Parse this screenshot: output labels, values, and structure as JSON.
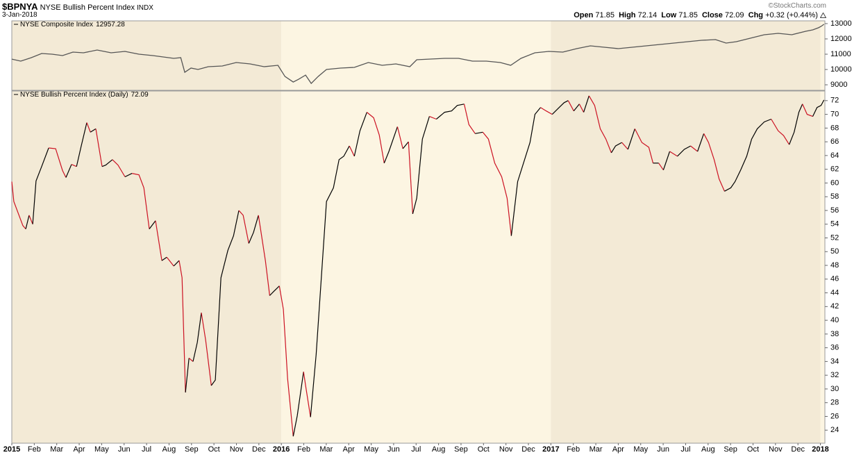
{
  "header": {
    "symbol": "$BPNYA",
    "name": "NYSE Bullish Percent Index",
    "exchange": "INDX",
    "date": "3-Jan-2018",
    "credit": "©StockCharts.com",
    "quote": {
      "open_label": "Open",
      "open": 71.85,
      "high_label": "High",
      "high": 72.14,
      "low_label": "Low",
      "low": 71.85,
      "close_label": "Close",
      "close": 72.09,
      "chg_label": "Chg",
      "chg": "+0.32 (+0.44%)"
    }
  },
  "chart_data": [
    {
      "type": "line",
      "x": [
        0,
        0.4,
        0.87,
        1.33,
        1.79,
        2.26,
        2.72,
        3.19,
        3.8,
        4.42,
        5.04,
        5.66,
        6.28,
        7.21,
        7.52,
        7.7,
        7.98,
        8.29,
        8.75,
        9.37,
        9.99,
        10.61,
        11.23,
        11.85,
        12.16,
        12.53,
        12.77,
        13.08,
        13.33,
        13.64,
        14.01,
        14.63,
        15.25,
        15.87,
        16.49,
        17.1,
        17.72,
        18.03,
        18.65,
        19.27,
        19.89,
        20.51,
        21.13,
        21.75,
        22.21,
        22.67,
        23.29,
        23.91,
        24.53,
        25.15,
        25.76,
        26.38,
        27.0,
        27.62,
        28.24,
        28.86,
        29.48,
        30.1,
        30.71,
        31.33,
        31.8,
        32.26,
        32.88,
        33.5,
        34.12,
        34.73,
        35.35,
        35.66,
        35.91,
        36.03,
        36.16
      ],
      "series": [
        {
          "name": "NYSE Composite Index",
          "color": "#555555",
          "values": [
            10680,
            10545,
            10773,
            11045,
            11000,
            10910,
            11136,
            11090,
            11273,
            11090,
            11182,
            11000,
            10910,
            10727,
            10773,
            9818,
            10091,
            10000,
            10182,
            10227,
            10455,
            10364,
            10182,
            10273,
            9545,
            9182,
            9364,
            9636,
            9091,
            9545,
            10000,
            10091,
            10136,
            10455,
            10273,
            10364,
            10182,
            10636,
            10682,
            10727,
            10727,
            10545,
            10545,
            10455,
            10273,
            10727,
            11091,
            11182,
            11136,
            11364,
            11545,
            11455,
            11364,
            11455,
            11545,
            11636,
            11727,
            11818,
            11909,
            11955,
            11727,
            11818,
            12045,
            12273,
            12364,
            12273,
            12500,
            12591,
            12727,
            12818,
            12957.28
          ]
        }
      ],
      "xlim": [
        0,
        36.2
      ],
      "ylim": [
        8640,
        13180
      ],
      "yticks": [
        9000,
        10000,
        11000,
        12000,
        13000
      ],
      "grid": false
    },
    {
      "type": "direction-line",
      "x": [
        0,
        0.09,
        0.49,
        0.62,
        0.77,
        0.93,
        1.08,
        1.33,
        1.64,
        1.95,
        2.26,
        2.41,
        2.66,
        2.88,
        3.09,
        3.34,
        3.5,
        3.74,
        4.02,
        4.18,
        4.48,
        4.73,
        5.04,
        5.35,
        5.66,
        5.88,
        6.12,
        6.4,
        6.68,
        6.9,
        7.21,
        7.45,
        7.58,
        7.73,
        7.89,
        8.07,
        8.26,
        8.44,
        8.63,
        8.88,
        9.06,
        9.31,
        9.62,
        9.87,
        10.11,
        10.3,
        10.55,
        10.76,
        10.98,
        11.29,
        11.48,
        11.66,
        11.91,
        12.09,
        12.28,
        12.53,
        12.71,
        12.99,
        13.08,
        13.3,
        13.55,
        13.76,
        14.01,
        14.32,
        14.57,
        14.78,
        15.03,
        15.25,
        15.5,
        15.81,
        16.11,
        16.36,
        16.58,
        16.79,
        17.17,
        17.41,
        17.66,
        17.85,
        18.03,
        18.28,
        18.59,
        18.9,
        19.27,
        19.58,
        19.83,
        20.14,
        20.35,
        20.63,
        20.97,
        21.22,
        21.5,
        21.81,
        22.05,
        22.24,
        22.52,
        22.83,
        23.07,
        23.29,
        23.54,
        23.79,
        24.06,
        24.37,
        24.59,
        24.77,
        25.02,
        25.27,
        25.46,
        25.7,
        25.95,
        26.2,
        26.45,
        26.69,
        26.88,
        27.16,
        27.43,
        27.74,
        28.05,
        28.36,
        28.55,
        28.8,
        29.01,
        29.29,
        29.63,
        29.94,
        30.22,
        30.53,
        30.81,
        31.02,
        31.27,
        31.49,
        31.73,
        32.01,
        32.2,
        32.45,
        32.72,
        32.94,
        33.19,
        33.5,
        33.81,
        34.12,
        34.36,
        34.61,
        34.83,
        35.04,
        35.2,
        35.41,
        35.66,
        35.85,
        36.03,
        36.16
      ],
      "series": [
        {
          "name": "NYSE Bullish Percent Index (Daily)",
          "up_color": "#000000",
          "down_color": "#cc1122",
          "values": [
            60.2,
            57.3,
            53.8,
            53.3,
            55.3,
            54,
            60.3,
            62.4,
            65.1,
            65,
            61.8,
            60.8,
            62.7,
            62.4,
            65.4,
            68.8,
            67.4,
            67.9,
            62.4,
            62.6,
            63.4,
            62.6,
            60.9,
            61.4,
            61.2,
            59.3,
            53.3,
            54.5,
            48.7,
            49.2,
            47.9,
            48.7,
            46.2,
            29.5,
            34.5,
            34,
            36.8,
            41.1,
            37.1,
            30.5,
            31.3,
            46.2,
            50.2,
            52.3,
            56,
            55.3,
            51.2,
            52.8,
            55.3,
            48.7,
            43.6,
            44.2,
            45,
            41.6,
            31.5,
            23.1,
            26.1,
            32.5,
            30.5,
            25.9,
            35,
            45.2,
            57.3,
            59.3,
            63.4,
            63.9,
            65.4,
            63.9,
            67.6,
            70.3,
            69.5,
            67,
            62.9,
            64.6,
            68.2,
            65,
            66,
            55.5,
            57.8,
            66.4,
            69.7,
            69.3,
            70.3,
            70.5,
            71.3,
            71.5,
            68.5,
            67.2,
            67.4,
            66.4,
            62.9,
            60.9,
            57.8,
            52.3,
            60.2,
            63.4,
            65.9,
            70,
            71,
            70.5,
            70,
            71,
            71.7,
            72,
            70.5,
            71.5,
            70.3,
            72.7,
            71.3,
            67.9,
            66.4,
            64.4,
            65.4,
            65.9,
            64.9,
            67.9,
            65.9,
            65.2,
            62.9,
            62.9,
            61.9,
            64.6,
            63.9,
            64.9,
            65.4,
            64.6,
            67.2,
            65.9,
            63.4,
            60.6,
            58.8,
            59.3,
            60.2,
            61.9,
            63.9,
            66.4,
            67.9,
            68.9,
            69.3,
            67.6,
            66.9,
            65.6,
            67.4,
            70.3,
            71.5,
            70,
            69.7,
            71,
            71.3,
            72.09
          ]
        }
      ],
      "xlim": [
        0,
        36.2
      ],
      "ylim": [
        22.1,
        73.4
      ],
      "yticks": [
        24,
        26,
        28,
        30,
        32,
        34,
        36,
        38,
        40,
        42,
        44,
        46,
        48,
        50,
        52,
        54,
        56,
        58,
        60,
        62,
        64,
        66,
        68,
        70,
        72
      ],
      "xticks": [
        {
          "value": 0,
          "label": "2015"
        },
        {
          "value": 1,
          "label": "Feb"
        },
        {
          "value": 2,
          "label": "Mar"
        },
        {
          "value": 3,
          "label": "Apr"
        },
        {
          "value": 4,
          "label": "May"
        },
        {
          "value": 5,
          "label": "Jun"
        },
        {
          "value": 6,
          "label": "Jul"
        },
        {
          "value": 7,
          "label": "Aug"
        },
        {
          "value": 8,
          "label": "Sep"
        },
        {
          "value": 9,
          "label": "Oct"
        },
        {
          "value": 10,
          "label": "Nov"
        },
        {
          "value": 11,
          "label": "Dec"
        },
        {
          "value": 12,
          "label": "2016"
        },
        {
          "value": 13,
          "label": "Feb"
        },
        {
          "value": 14,
          "label": "Mar"
        },
        {
          "value": 15,
          "label": "Apr"
        },
        {
          "value": 16,
          "label": "May"
        },
        {
          "value": 17,
          "label": "Jun"
        },
        {
          "value": 18,
          "label": "Jul"
        },
        {
          "value": 19,
          "label": "Aug"
        },
        {
          "value": 20,
          "label": "Sep"
        },
        {
          "value": 21,
          "label": "Oct"
        },
        {
          "value": 22,
          "label": "Nov"
        },
        {
          "value": 23,
          "label": "Dec"
        },
        {
          "value": 24,
          "label": "2017"
        },
        {
          "value": 25,
          "label": "Feb"
        },
        {
          "value": 26,
          "label": "Mar"
        },
        {
          "value": 27,
          "label": "Apr"
        },
        {
          "value": 28,
          "label": "May"
        },
        {
          "value": 29,
          "label": "Jun"
        },
        {
          "value": 30,
          "label": "Jul"
        },
        {
          "value": 31,
          "label": "Aug"
        },
        {
          "value": 32,
          "label": "Sep"
        },
        {
          "value": 33,
          "label": "Oct"
        },
        {
          "value": 34,
          "label": "Nov"
        },
        {
          "value": 35,
          "label": "Dec"
        },
        {
          "value": 36,
          "label": "2018"
        }
      ],
      "band_colors": [
        "#f3ead6",
        "#fcf5e2"
      ],
      "grid": false
    }
  ]
}
